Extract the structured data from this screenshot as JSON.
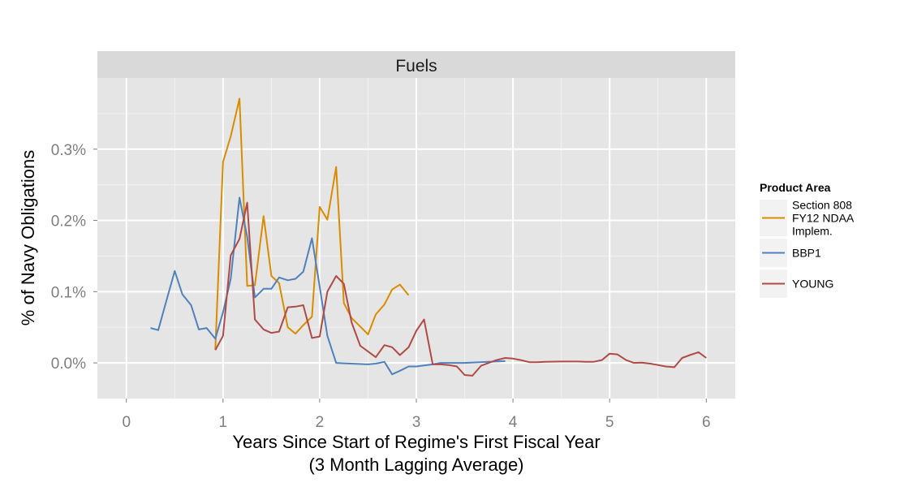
{
  "chart_data": {
    "type": "line",
    "facet_title": "Fuels",
    "xlabel_line1": "Years Since Start of Regime's First Fiscal Year",
    "xlabel_line2": "(3 Month Lagging Average)",
    "ylabel": "% of Navy Obligations",
    "xlim": [
      -0.3,
      6.3
    ],
    "ylim": [
      -0.05,
      0.4
    ],
    "x_ticks": [
      0,
      1,
      2,
      3,
      4,
      5,
      6
    ],
    "x_tick_labels": [
      "0",
      "1",
      "2",
      "3",
      "4",
      "5",
      "6"
    ],
    "y_ticks": [
      0,
      0.1,
      0.2,
      0.3
    ],
    "y_tick_labels": [
      "0.0%",
      "0.1%",
      "0.2%",
      "0.3%"
    ],
    "grid": true,
    "legend_title": "Product Area",
    "legend_position": "right",
    "series": [
      {
        "name": "Section 808 FY12 NDAA Implem.",
        "legend_lines": [
          "Section 808",
          "FY12 NDAA",
          "Implem."
        ],
        "color": "#d98c00",
        "points": [
          [
            0.92,
            0.019
          ],
          [
            1.0,
            0.282
          ],
          [
            1.08,
            0.318
          ],
          [
            1.17,
            0.371
          ],
          [
            1.25,
            0.108
          ],
          [
            1.33,
            0.109
          ],
          [
            1.42,
            0.206
          ],
          [
            1.5,
            0.122
          ],
          [
            1.58,
            0.112
          ],
          [
            1.67,
            0.05
          ],
          [
            1.75,
            0.041
          ],
          [
            1.83,
            0.053
          ],
          [
            1.92,
            0.065
          ],
          [
            2.0,
            0.219
          ],
          [
            2.08,
            0.201
          ],
          [
            2.17,
            0.275
          ],
          [
            2.25,
            0.084
          ],
          [
            2.33,
            0.063
          ],
          [
            2.42,
            0.051
          ],
          [
            2.5,
            0.04
          ],
          [
            2.58,
            0.068
          ],
          [
            2.67,
            0.082
          ],
          [
            2.75,
            0.103
          ],
          [
            2.83,
            0.11
          ],
          [
            2.92,
            0.095
          ]
        ]
      },
      {
        "name": "BBP1",
        "legend_lines": [
          "BBP1"
        ],
        "color": "#4f81bd",
        "points": [
          [
            0.25,
            0.049
          ],
          [
            0.33,
            0.046
          ],
          [
            0.42,
            0.09
          ],
          [
            0.5,
            0.129
          ],
          [
            0.58,
            0.096
          ],
          [
            0.67,
            0.081
          ],
          [
            0.75,
            0.047
          ],
          [
            0.83,
            0.049
          ],
          [
            0.92,
            0.034
          ],
          [
            1.0,
            0.071
          ],
          [
            1.08,
            0.118
          ],
          [
            1.17,
            0.232
          ],
          [
            1.25,
            0.177
          ],
          [
            1.33,
            0.092
          ],
          [
            1.42,
            0.104
          ],
          [
            1.5,
            0.104
          ],
          [
            1.58,
            0.12
          ],
          [
            1.67,
            0.116
          ],
          [
            1.75,
            0.118
          ],
          [
            1.83,
            0.128
          ],
          [
            1.92,
            0.175
          ],
          [
            2.0,
            0.107
          ],
          [
            2.08,
            0.038
          ],
          [
            2.17,
            0.0
          ],
          [
            2.25,
            -0.0005
          ],
          [
            2.5,
            -0.002
          ],
          [
            2.58,
            -0.001
          ],
          [
            2.67,
            0.0015
          ],
          [
            2.75,
            -0.016
          ],
          [
            2.83,
            -0.011
          ],
          [
            2.92,
            -0.005
          ],
          [
            3.0,
            -0.005
          ],
          [
            3.08,
            -0.0035
          ],
          [
            3.17,
            -0.002
          ],
          [
            3.25,
            0.0
          ],
          [
            3.5,
            0.0
          ],
          [
            3.75,
            0.0015
          ],
          [
            3.92,
            0.0025
          ]
        ]
      },
      {
        "name": "YOUNG",
        "legend_lines": [
          "YOUNG"
        ],
        "color": "#b04a45",
        "points": [
          [
            0.92,
            0.018
          ],
          [
            1.0,
            0.038
          ],
          [
            1.08,
            0.151
          ],
          [
            1.17,
            0.174
          ],
          [
            1.25,
            0.225
          ],
          [
            1.33,
            0.061
          ],
          [
            1.42,
            0.047
          ],
          [
            1.5,
            0.042
          ],
          [
            1.58,
            0.044
          ],
          [
            1.67,
            0.078
          ],
          [
            1.75,
            0.079
          ],
          [
            1.83,
            0.081
          ],
          [
            1.92,
            0.035
          ],
          [
            2.0,
            0.037
          ],
          [
            2.08,
            0.1
          ],
          [
            2.17,
            0.122
          ],
          [
            2.25,
            0.111
          ],
          [
            2.33,
            0.057
          ],
          [
            2.42,
            0.024
          ],
          [
            2.5,
            0.016
          ],
          [
            2.58,
            0.008
          ],
          [
            2.67,
            0.025
          ],
          [
            2.75,
            0.022
          ],
          [
            2.83,
            0.011
          ],
          [
            2.92,
            0.022
          ],
          [
            3.0,
            0.045
          ],
          [
            3.08,
            0.061
          ],
          [
            3.17,
            -0.002
          ],
          [
            3.25,
            -0.002
          ],
          [
            3.33,
            -0.003
          ],
          [
            3.42,
            -0.005
          ],
          [
            3.5,
            -0.017
          ],
          [
            3.58,
            -0.018
          ],
          [
            3.67,
            -0.004
          ],
          [
            3.75,
            0.0
          ],
          [
            3.83,
            0.004
          ],
          [
            3.92,
            0.007
          ],
          [
            4.0,
            0.006
          ],
          [
            4.08,
            0.004
          ],
          [
            4.17,
            0.001
          ],
          [
            4.25,
            0.001
          ],
          [
            4.33,
            0.0015
          ],
          [
            4.5,
            0.002
          ],
          [
            4.67,
            0.002
          ],
          [
            4.75,
            0.0015
          ],
          [
            4.83,
            0.0015
          ],
          [
            4.92,
            0.004
          ],
          [
            5.0,
            0.013
          ],
          [
            5.08,
            0.012
          ],
          [
            5.17,
            0.004
          ],
          [
            5.25,
            0.0
          ],
          [
            5.33,
            0.0005
          ],
          [
            5.42,
            -0.001
          ],
          [
            5.5,
            -0.003
          ],
          [
            5.58,
            -0.005
          ],
          [
            5.67,
            -0.006
          ],
          [
            5.75,
            0.007
          ],
          [
            5.83,
            0.011
          ],
          [
            5.92,
            0.015
          ],
          [
            6.0,
            0.007
          ]
        ]
      }
    ]
  }
}
